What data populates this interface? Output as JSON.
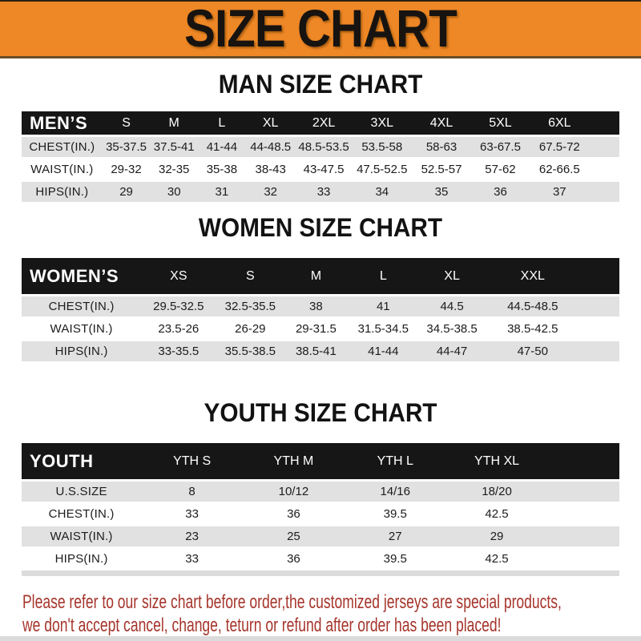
{
  "banner": {
    "title": "SIZE CHART",
    "bg_color": "#EE8725",
    "text_color": "#171310"
  },
  "sections": [
    {
      "heading": "MAN SIZE CHART",
      "table": {
        "header_label": "MEN’S",
        "columns": [
          "S",
          "M",
          "L",
          "XL",
          "2XL",
          "3XL",
          "4XL",
          "5XL",
          "6XL"
        ],
        "rows": [
          {
            "label": "CHEST(IN.)",
            "values": [
              "35-37.5",
              "37.5-41",
              "41-44",
              "44-48.5",
              "48.5-53.5",
              "53.5-58",
              "58-63",
              "63-67.5",
              "67.5-72"
            ]
          },
          {
            "label": "WAIST(IN.)",
            "values": [
              "29-32",
              "32-35",
              "35-38",
              "38-43",
              "43-47.5",
              "47.5-52.5",
              "52.5-57",
              "57-62",
              "62-66.5"
            ]
          },
          {
            "label": "HIPS(IN.)",
            "values": [
              "29",
              "30",
              "31",
              "32",
              "33",
              "34",
              "35",
              "36",
              "37"
            ]
          }
        ]
      }
    },
    {
      "heading": "WOMEN SIZE CHART",
      "table": {
        "header_label": "WOMEN’S",
        "columns": [
          "XS",
          "S",
          "M",
          "L",
          "XL",
          "XXL"
        ],
        "rows": [
          {
            "label": "CHEST(IN.)",
            "values": [
              "29.5-32.5",
              "32.5-35.5",
              "38",
              "41",
              "44.5",
              "44.5-48.5"
            ]
          },
          {
            "label": "WAIST(IN.)",
            "values": [
              "23.5-26",
              "26-29",
              "29-31.5",
              "31.5-34.5",
              "34.5-38.5",
              "38.5-42.5"
            ]
          },
          {
            "label": "HIPS(IN.)",
            "values": [
              "33-35.5",
              "35.5-38.5",
              "38.5-41",
              "41-44",
              "44-47",
              "47-50"
            ]
          }
        ]
      }
    },
    {
      "heading": "YOUTH SIZE CHART",
      "table": {
        "header_label": "YOUTH",
        "columns": [
          "YTH S",
          "YTH M",
          "YTH L",
          "YTH XL"
        ],
        "rows": [
          {
            "label": "U.S.SIZE",
            "values": [
              "8",
              "10/12",
              "14/16",
              "18/20"
            ]
          },
          {
            "label": "CHEST(IN.)",
            "values": [
              "33",
              "36",
              "39.5",
              "42.5"
            ]
          },
          {
            "label": "WAIST(IN.)",
            "values": [
              "23",
              "25",
              "27",
              "29"
            ]
          },
          {
            "label": "HIPS(IN.)",
            "values": [
              "33",
              "36",
              "39.5",
              "42.5"
            ]
          }
        ]
      }
    }
  ],
  "footer": {
    "line1": "Please refer to our size chart before order,the customized jerseys are special products,",
    "line2": "we don't accept cancel, change, teturn or refund after order has been placed!",
    "text_color": "#A6352C"
  }
}
